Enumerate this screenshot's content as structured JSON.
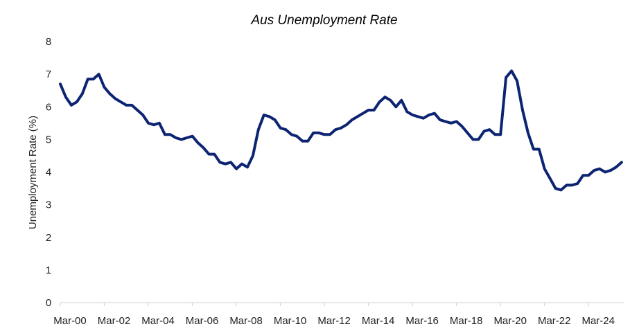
{
  "chart_data": {
    "type": "line",
    "title": "Aus Unemployment Rate",
    "xlabel": "",
    "ylabel": "Unemployment Rate (%)",
    "ylim": [
      0,
      8
    ],
    "yticks": [
      0,
      1,
      2,
      3,
      4,
      5,
      6,
      7,
      8
    ],
    "xtick_labels": [
      "Mar-00",
      "Mar-02",
      "Mar-04",
      "Mar-06",
      "Mar-08",
      "Mar-10",
      "Mar-12",
      "Mar-14",
      "Mar-16",
      "Mar-18",
      "Mar-20",
      "Mar-22",
      "Mar-24"
    ],
    "grid": false,
    "legend": null,
    "line_color": "#0d2473",
    "frequency": "quarterly",
    "x_start": "Mar-00",
    "series": [
      {
        "name": "Unemployment Rate (%)",
        "values": [
          6.7,
          6.3,
          6.05,
          6.15,
          6.4,
          6.85,
          6.85,
          7.0,
          6.6,
          6.4,
          6.25,
          6.15,
          6.05,
          6.05,
          5.9,
          5.75,
          5.5,
          5.45,
          5.5,
          5.15,
          5.15,
          5.05,
          5.0,
          5.05,
          5.1,
          4.9,
          4.75,
          4.55,
          4.55,
          4.3,
          4.25,
          4.3,
          4.1,
          4.25,
          4.15,
          4.5,
          5.3,
          5.75,
          5.7,
          5.6,
          5.35,
          5.3,
          5.15,
          5.1,
          4.95,
          4.95,
          5.2,
          5.2,
          5.15,
          5.15,
          5.3,
          5.35,
          5.45,
          5.6,
          5.7,
          5.8,
          5.9,
          5.9,
          6.15,
          6.3,
          6.2,
          6.0,
          6.2,
          5.85,
          5.75,
          5.7,
          5.65,
          5.75,
          5.8,
          5.6,
          5.55,
          5.5,
          5.55,
          5.4,
          5.2,
          5.0,
          5.0,
          5.25,
          5.3,
          5.15,
          5.15,
          6.9,
          7.1,
          6.8,
          5.9,
          5.2,
          4.7,
          4.7,
          4.1,
          3.8,
          3.5,
          3.45,
          3.6,
          3.6,
          3.65,
          3.9,
          3.9,
          4.05,
          4.1,
          4.0,
          4.05,
          4.15,
          4.3
        ]
      }
    ]
  }
}
